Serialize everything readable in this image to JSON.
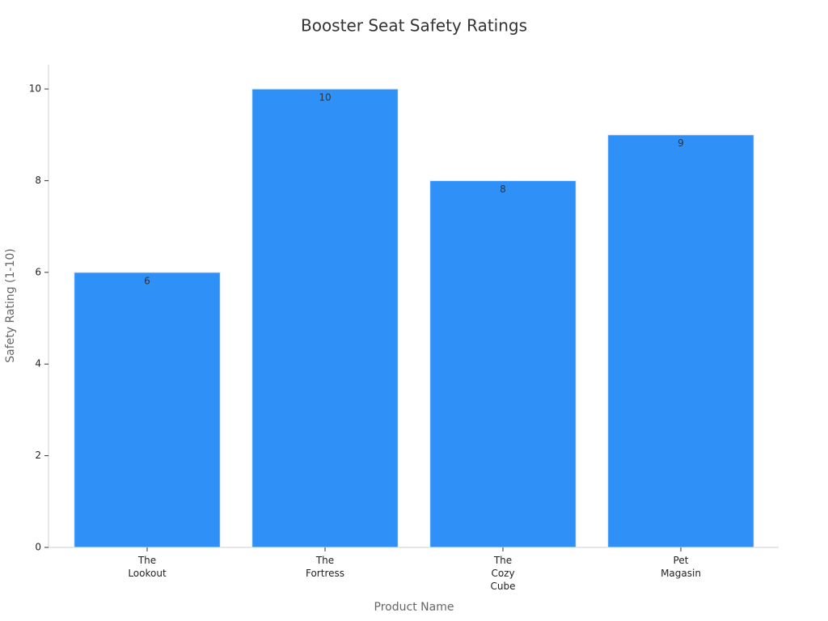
{
  "chart_data": {
    "type": "bar",
    "title": "Booster Seat Safety Ratings",
    "x_label": "Product Name",
    "y_label": "Safety Rating (1-10)",
    "categories": [
      "The\nLookout",
      "The\nFortress",
      "The\nCozy\nCube",
      "Pet\nMagasin"
    ],
    "values": [
      6,
      10,
      8,
      9
    ],
    "color": "#2f91f8",
    "ylim": [
      0,
      10.53
    ],
    "yticks": [
      0,
      2,
      4,
      6,
      8,
      10
    ],
    "grid": false
  }
}
